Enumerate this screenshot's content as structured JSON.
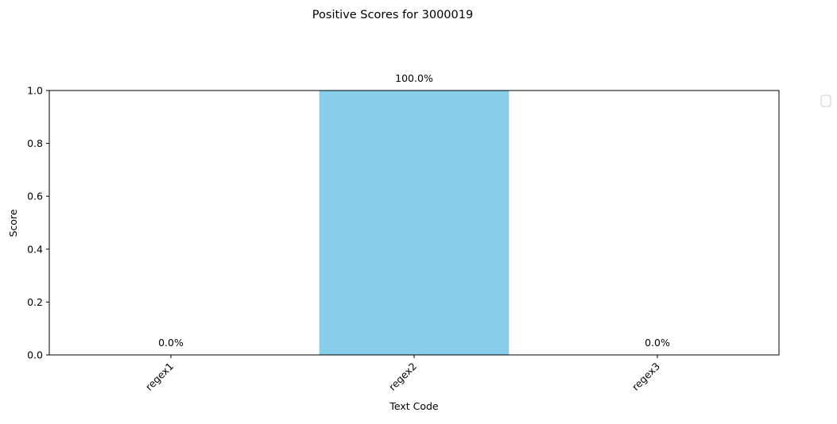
{
  "chart_data": {
    "type": "bar",
    "title": "Positive Scores for 3000019",
    "xlabel": "Text Code",
    "ylabel": "Score",
    "categories": [
      "regex1",
      "regex2",
      "regex3"
    ],
    "values": [
      0.0,
      1.0,
      0.0
    ],
    "data_labels": [
      "0.0%",
      "100.0%",
      "0.0%"
    ],
    "ylim": [
      0,
      1
    ],
    "yticks": [
      0.0,
      0.2,
      0.4,
      0.6,
      0.8,
      1.0
    ],
    "ytick_labels": [
      "0.0",
      "0.2",
      "0.4",
      "0.6",
      "0.8",
      "1.0"
    ],
    "bar_color": "#87CEEB",
    "grid": false,
    "legend": {
      "placement": "outside-upper-right",
      "entries": []
    }
  }
}
